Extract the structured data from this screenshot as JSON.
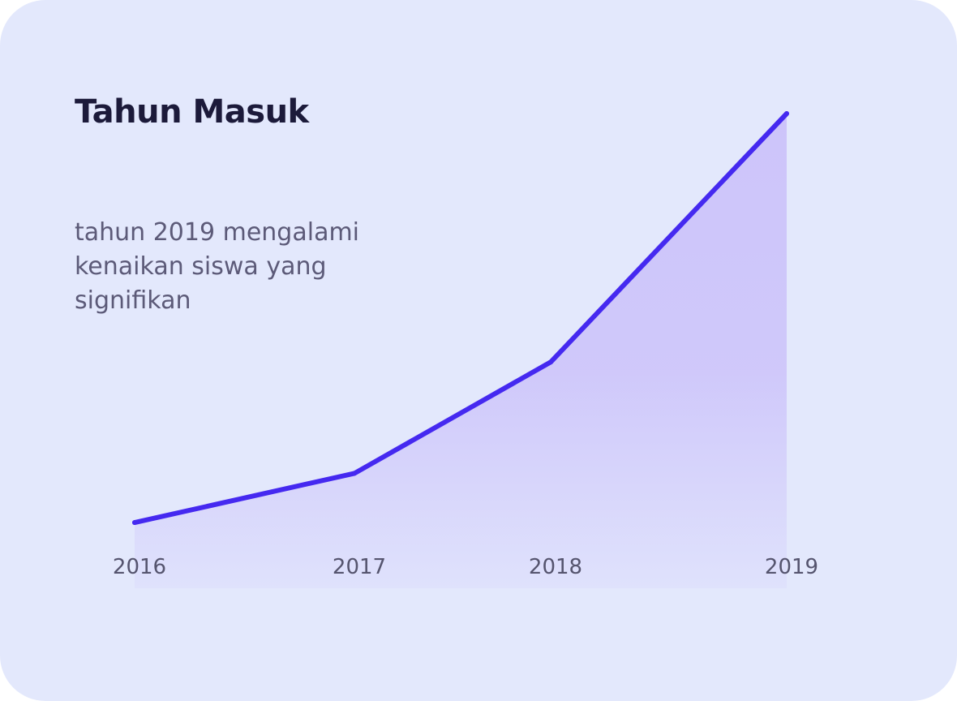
{
  "card": {
    "background": "#e3e8fc"
  },
  "text": {
    "title": "Tahun Masuk",
    "description": "tahun 2019 mengalami kenaikan siswa yang signifikan"
  },
  "chart_data": {
    "type": "area",
    "title": "Tahun Masuk",
    "subtitle": "tahun 2019 mengalami kenaikan siswa yang signifikan",
    "categories": [
      "2016",
      "2017",
      "2018",
      "2019"
    ],
    "series": [
      {
        "values": [
          5,
          24,
          67,
          163
        ]
      }
    ],
    "ylim": [
      0,
      163
    ],
    "xlabel": "",
    "ylabel": "",
    "grid": false,
    "legend": "none",
    "line_color": "#4529f0",
    "fill_color": "#c9befa"
  }
}
